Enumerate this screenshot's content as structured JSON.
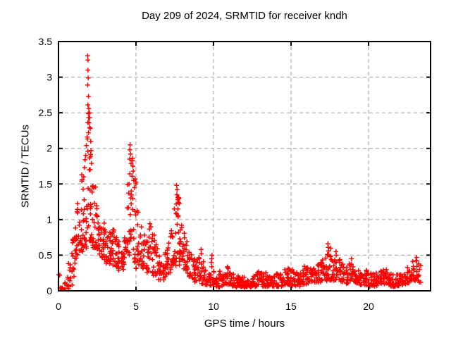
{
  "chart_data": {
    "type": "scatter",
    "title": "Day 209 of 2024, SRMTID for receiver kndh",
    "xlabel": "GPS time / hours",
    "ylabel": "SRMTID / TECUs",
    "xlim": [
      0,
      24
    ],
    "ylim": [
      0,
      3.5
    ],
    "xticks": [
      0,
      5,
      10,
      15,
      20
    ],
    "yticks": [
      0,
      0.5,
      1,
      1.5,
      2,
      2.5,
      3,
      3.5
    ],
    "grid": true,
    "legend": "none",
    "marker": "plus",
    "colors": {
      "marker": "#ff0000",
      "grid": "#b3b3b3",
      "border": "#000000",
      "background": "#ffffff",
      "text": "#000000"
    },
    "max_value_tecus": 3.3,
    "max_value_time_hours": 1.9,
    "density_bins": {
      "description": "Scatter cloud summarized as 0.2-hour bins: [t_center_hours, n_points, y_min_TECUs, y_max_TECUs]",
      "columns": [
        "t_center",
        "n_points",
        "y_min",
        "y_max"
      ],
      "rows": [
        [
          0.1,
          2,
          0.03,
          0.23
        ],
        [
          0.3,
          2,
          0.02,
          0.08
        ],
        [
          0.5,
          5,
          0.04,
          0.28
        ],
        [
          0.7,
          10,
          0.03,
          0.4
        ],
        [
          0.9,
          12,
          0.06,
          0.75
        ],
        [
          1.1,
          13,
          0.35,
          0.95
        ],
        [
          1.3,
          13,
          0.5,
          1.25
        ],
        [
          1.5,
          14,
          0.55,
          1.55
        ],
        [
          1.7,
          14,
          0.6,
          1.9
        ],
        [
          1.9,
          16,
          0.7,
          2.5
        ],
        [
          2.1,
          16,
          0.7,
          2.2
        ],
        [
          2.3,
          14,
          0.6,
          1.5
        ],
        [
          2.5,
          14,
          0.5,
          1.2
        ],
        [
          2.7,
          13,
          0.45,
          1.0
        ],
        [
          2.9,
          13,
          0.4,
          0.95
        ],
        [
          3.1,
          13,
          0.35,
          0.9
        ],
        [
          3.3,
          14,
          0.35,
          0.85
        ],
        [
          3.5,
          14,
          0.35,
          0.9
        ],
        [
          3.7,
          13,
          0.33,
          0.8
        ],
        [
          3.9,
          12,
          0.28,
          0.7
        ],
        [
          4.1,
          12,
          0.3,
          0.75
        ],
        [
          4.3,
          12,
          0.35,
          0.9
        ],
        [
          4.5,
          12,
          0.5,
          1.55
        ],
        [
          4.7,
          14,
          0.7,
          2.0
        ],
        [
          4.9,
          14,
          0.4,
          1.75
        ],
        [
          5.1,
          13,
          0.3,
          1.3
        ],
        [
          5.3,
          12,
          0.35,
          1.0
        ],
        [
          5.5,
          12,
          0.3,
          0.85
        ],
        [
          5.7,
          12,
          0.25,
          0.8
        ],
        [
          5.9,
          12,
          0.25,
          0.95
        ],
        [
          6.1,
          12,
          0.2,
          0.8
        ],
        [
          6.3,
          12,
          0.2,
          0.65
        ],
        [
          6.5,
          10,
          0.15,
          0.55
        ],
        [
          6.7,
          10,
          0.15,
          0.5
        ],
        [
          6.9,
          10,
          0.2,
          0.55
        ],
        [
          7.1,
          12,
          0.25,
          0.8
        ],
        [
          7.3,
          12,
          0.3,
          0.95
        ],
        [
          7.5,
          13,
          0.35,
          1.2
        ],
        [
          7.7,
          14,
          0.4,
          1.45
        ],
        [
          7.9,
          13,
          0.35,
          1.0
        ],
        [
          8.1,
          12,
          0.3,
          0.85
        ],
        [
          8.3,
          12,
          0.25,
          0.7
        ],
        [
          8.5,
          11,
          0.2,
          0.6
        ],
        [
          8.7,
          10,
          0.15,
          0.5
        ],
        [
          8.9,
          10,
          0.12,
          0.45
        ],
        [
          9.1,
          10,
          0.12,
          0.5
        ],
        [
          9.3,
          10,
          0.1,
          0.45
        ],
        [
          9.5,
          10,
          0.08,
          0.3
        ],
        [
          9.7,
          10,
          0.08,
          0.28
        ],
        [
          9.9,
          10,
          0.07,
          0.42
        ],
        [
          10.1,
          10,
          0.05,
          0.3
        ],
        [
          10.3,
          10,
          0.05,
          0.25
        ],
        [
          10.5,
          10,
          0.06,
          0.28
        ],
        [
          10.7,
          10,
          0.08,
          0.3
        ],
        [
          10.9,
          10,
          0.08,
          0.34
        ],
        [
          11.1,
          10,
          0.07,
          0.3
        ],
        [
          11.3,
          10,
          0.06,
          0.25
        ],
        [
          11.5,
          10,
          0.05,
          0.22
        ],
        [
          11.7,
          10,
          0.05,
          0.22
        ],
        [
          11.9,
          10,
          0.06,
          0.25
        ],
        [
          12.1,
          10,
          0.04,
          0.2
        ],
        [
          12.3,
          10,
          0.04,
          0.18
        ],
        [
          12.5,
          10,
          0.05,
          0.2
        ],
        [
          12.7,
          10,
          0.05,
          0.24
        ],
        [
          12.9,
          10,
          0.06,
          0.3
        ],
        [
          13.1,
          10,
          0.06,
          0.28
        ],
        [
          13.3,
          10,
          0.06,
          0.26
        ],
        [
          13.5,
          10,
          0.05,
          0.22
        ],
        [
          13.7,
          10,
          0.05,
          0.22
        ],
        [
          13.9,
          10,
          0.06,
          0.24
        ],
        [
          14.1,
          10,
          0.06,
          0.24
        ],
        [
          14.3,
          10,
          0.06,
          0.26
        ],
        [
          14.5,
          10,
          0.07,
          0.28
        ],
        [
          14.7,
          10,
          0.08,
          0.32
        ],
        [
          14.9,
          10,
          0.08,
          0.36
        ],
        [
          15.1,
          10,
          0.07,
          0.3
        ],
        [
          15.3,
          10,
          0.06,
          0.26
        ],
        [
          15.5,
          10,
          0.06,
          0.26
        ],
        [
          15.7,
          10,
          0.08,
          0.32
        ],
        [
          15.9,
          10,
          0.09,
          0.36
        ],
        [
          16.1,
          10,
          0.09,
          0.34
        ],
        [
          16.3,
          10,
          0.1,
          0.34
        ],
        [
          16.5,
          10,
          0.11,
          0.38
        ],
        [
          16.7,
          10,
          0.12,
          0.42
        ],
        [
          16.9,
          10,
          0.12,
          0.4
        ],
        [
          17.1,
          10,
          0.13,
          0.44
        ],
        [
          17.3,
          12,
          0.14,
          0.55
        ],
        [
          17.5,
          12,
          0.15,
          0.6
        ],
        [
          17.7,
          11,
          0.14,
          0.48
        ],
        [
          17.9,
          11,
          0.15,
          0.5
        ],
        [
          18.1,
          10,
          0.12,
          0.44
        ],
        [
          18.3,
          10,
          0.12,
          0.4
        ],
        [
          18.5,
          10,
          0.1,
          0.35
        ],
        [
          18.7,
          10,
          0.11,
          0.38
        ],
        [
          18.9,
          10,
          0.12,
          0.42
        ],
        [
          19.1,
          10,
          0.1,
          0.34
        ],
        [
          19.3,
          10,
          0.08,
          0.3
        ],
        [
          19.5,
          10,
          0.08,
          0.28
        ],
        [
          19.7,
          10,
          0.08,
          0.28
        ],
        [
          19.9,
          10,
          0.08,
          0.3
        ],
        [
          20.1,
          10,
          0.06,
          0.25
        ],
        [
          20.3,
          10,
          0.06,
          0.25
        ],
        [
          20.5,
          10,
          0.07,
          0.28
        ],
        [
          20.7,
          10,
          0.09,
          0.3
        ],
        [
          20.9,
          10,
          0.1,
          0.33
        ],
        [
          21.1,
          10,
          0.08,
          0.3
        ],
        [
          21.3,
          10,
          0.08,
          0.28
        ],
        [
          21.5,
          10,
          0.06,
          0.25
        ],
        [
          21.7,
          10,
          0.06,
          0.24
        ],
        [
          21.9,
          10,
          0.07,
          0.26
        ],
        [
          22.1,
          10,
          0.07,
          0.28
        ],
        [
          22.3,
          10,
          0.08,
          0.3
        ],
        [
          22.5,
          10,
          0.1,
          0.33
        ],
        [
          22.7,
          10,
          0.12,
          0.38
        ],
        [
          22.9,
          10,
          0.14,
          0.42
        ],
        [
          23.1,
          10,
          0.14,
          0.45
        ],
        [
          23.3,
          8,
          0.12,
          0.4
        ]
      ]
    },
    "peak_points": [
      [
        1.88,
        3.3
      ],
      [
        1.9,
        3.24
      ],
      [
        1.9,
        3.1
      ],
      [
        1.92,
        2.99
      ],
      [
        1.88,
        2.89
      ],
      [
        1.93,
        2.73
      ],
      [
        1.9,
        2.61
      ],
      [
        1.95,
        2.56
      ],
      [
        2.0,
        2.5
      ],
      [
        2.02,
        2.43
      ],
      [
        1.97,
        2.36
      ],
      [
        2.05,
        2.28
      ],
      [
        1.85,
        2.16
      ],
      [
        2.08,
        2.1
      ],
      [
        1.8,
        2.04
      ],
      [
        2.1,
        1.97
      ],
      [
        1.76,
        1.9
      ],
      [
        1.72,
        1.84
      ],
      [
        2.13,
        1.79
      ],
      [
        1.68,
        1.73
      ],
      [
        1.5,
        1.63
      ],
      [
        1.52,
        1.56
      ],
      [
        4.62,
        2.05
      ],
      [
        4.6,
        1.98
      ],
      [
        4.65,
        1.92
      ],
      [
        4.59,
        1.85
      ],
      [
        4.68,
        1.79
      ],
      [
        4.78,
        1.83
      ],
      [
        4.8,
        1.75
      ],
      [
        4.82,
        1.68
      ],
      [
        4.75,
        1.61
      ],
      [
        4.85,
        1.55
      ],
      [
        4.55,
        1.5
      ],
      [
        4.9,
        1.45
      ],
      [
        4.7,
        1.4
      ],
      [
        7.62,
        1.48
      ],
      [
        7.65,
        1.42
      ],
      [
        7.63,
        1.35
      ],
      [
        7.68,
        1.28
      ],
      [
        7.6,
        1.22
      ],
      [
        7.7,
        1.15
      ],
      [
        7.58,
        1.09
      ],
      [
        7.72,
        1.04
      ],
      [
        9.2,
        0.58
      ],
      [
        9.22,
        0.52
      ],
      [
        9.9,
        0.5
      ],
      [
        9.88,
        0.45
      ],
      [
        17.38,
        0.66
      ],
      [
        17.4,
        0.61
      ],
      [
        17.42,
        0.56
      ],
      [
        17.35,
        0.51
      ],
      [
        17.9,
        0.55
      ],
      [
        17.92,
        0.5
      ],
      [
        18.9,
        0.45
      ],
      [
        23.1,
        0.47
      ],
      [
        0.08,
        0.22
      ],
      [
        0.1,
        0.04
      ]
    ],
    "outlier_square_point": [
      0.35,
      0.02
    ]
  }
}
